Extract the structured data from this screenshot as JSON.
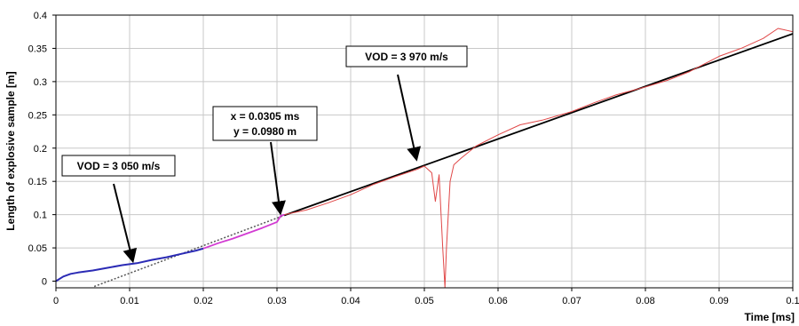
{
  "chart_data": {
    "type": "line",
    "xlabel": "Time [ms]",
    "ylabel": "Length of explosive sample [m]",
    "xlim": [
      0,
      0.1
    ],
    "ylim": [
      -0.01,
      0.4
    ],
    "grid": true,
    "x_ticks": [
      "0",
      "0.01",
      "0.02",
      "0.03",
      "0.04",
      "0.05",
      "0.06",
      "0.07",
      "0.08",
      "0.09",
      "0.1"
    ],
    "y_ticks": [
      "0",
      "0.05",
      "0.1",
      "0.15",
      "0.2",
      "0.25",
      "0.3",
      "0.35",
      "0.4"
    ],
    "series": [
      {
        "color": "#2b2bb5",
        "points": [
          [
            0,
            0.0
          ],
          [
            0.001,
            0.007
          ],
          [
            0.002,
            0.011
          ],
          [
            0.003,
            0.013
          ],
          [
            0.005,
            0.016
          ],
          [
            0.007,
            0.02
          ],
          [
            0.009,
            0.024
          ],
          [
            0.011,
            0.027
          ],
          [
            0.013,
            0.032
          ],
          [
            0.015,
            0.036
          ],
          [
            0.017,
            0.041
          ],
          [
            0.019,
            0.046
          ],
          [
            0.02,
            0.049
          ]
        ]
      },
      {
        "color": "#d23bd2",
        "points": [
          [
            0.02,
            0.049
          ],
          [
            0.022,
            0.057
          ],
          [
            0.024,
            0.064
          ],
          [
            0.026,
            0.072
          ],
          [
            0.028,
            0.08
          ],
          [
            0.03,
            0.089
          ],
          [
            0.0305,
            0.098
          ],
          [
            0.031,
            0.1
          ]
        ]
      },
      {
        "color": "#e04848",
        "points": [
          [
            0.031,
            0.1
          ],
          [
            0.034,
            0.107
          ],
          [
            0.037,
            0.118
          ],
          [
            0.04,
            0.13
          ],
          [
            0.043,
            0.145
          ],
          [
            0.046,
            0.157
          ],
          [
            0.049,
            0.168
          ],
          [
            0.05,
            0.173
          ],
          [
            0.051,
            0.163
          ],
          [
            0.0515,
            0.12
          ],
          [
            0.052,
            0.16
          ],
          [
            0.0525,
            0.05
          ],
          [
            0.0528,
            -0.01
          ],
          [
            0.053,
            0.05
          ],
          [
            0.0535,
            0.15
          ],
          [
            0.054,
            0.175
          ],
          [
            0.055,
            0.185
          ],
          [
            0.057,
            0.203
          ],
          [
            0.06,
            0.22
          ],
          [
            0.063,
            0.235
          ],
          [
            0.066,
            0.242
          ],
          [
            0.07,
            0.255
          ],
          [
            0.073,
            0.268
          ],
          [
            0.076,
            0.28
          ],
          [
            0.08,
            0.292
          ],
          [
            0.083,
            0.302
          ],
          [
            0.086,
            0.315
          ],
          [
            0.09,
            0.338
          ],
          [
            0.093,
            0.35
          ],
          [
            0.096,
            0.365
          ],
          [
            0.098,
            0.38
          ],
          [
            0.1,
            0.375
          ]
        ]
      }
    ],
    "fit_lines": [
      {
        "color": "#000000",
        "style": "solid",
        "from": [
          0.031,
          0.099
        ],
        "to": [
          0.1,
          0.372
        ]
      },
      {
        "color": "#555555",
        "style": "dotted",
        "from": [
          0.0052,
          -0.008
        ],
        "to": [
          0.031,
          0.099
        ]
      }
    ],
    "annotations": [
      {
        "text": "VOD = 3 050 m/s",
        "arrow_to": [
          0.0105,
          0.027
        ]
      },
      {
        "lines": [
          "x = 0.0305 ms",
          "y = 0.0980 m"
        ],
        "arrow_to": [
          0.0305,
          0.099
        ]
      },
      {
        "text": "VOD = 3 970 m/s",
        "arrow_to": [
          0.049,
          0.18
        ]
      }
    ]
  }
}
